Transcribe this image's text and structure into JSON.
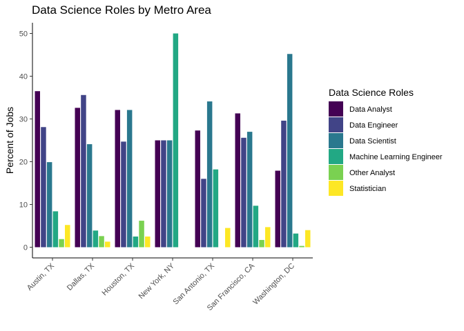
{
  "chart_data": {
    "type": "bar",
    "title": "Data Science Roles by Metro Area",
    "xlabel": "",
    "ylabel": "Percent of Jobs",
    "ylim": [
      -2.5,
      52.5
    ],
    "yticks": [
      0,
      10,
      20,
      30,
      40,
      50
    ],
    "grid": false,
    "legend": {
      "title": "Data Science Roles",
      "position": "right"
    },
    "categories": [
      "Austin, TX",
      "Dallas, TX",
      "Houston, TX",
      "New York, NY",
      "San Antonio, TX",
      "San Francisco, CA",
      "Washington, DC"
    ],
    "series": [
      {
        "name": "Data Analyst",
        "color": "#440154",
        "values": [
          36.5,
          32.6,
          32.1,
          25.0,
          27.3,
          31.3,
          17.9
        ]
      },
      {
        "name": "Data Engineer",
        "color": "#414487",
        "values": [
          28.1,
          35.6,
          24.7,
          25.0,
          16.0,
          25.6,
          29.6
        ]
      },
      {
        "name": "Data Scientist",
        "color": "#2A788E",
        "values": [
          19.9,
          24.1,
          32.1,
          25.0,
          34.1,
          27.0,
          45.2
        ]
      },
      {
        "name": "Machine Learning Engineer",
        "color": "#22A884",
        "values": [
          8.4,
          3.9,
          2.5,
          50.0,
          18.2,
          9.7,
          3.2
        ]
      },
      {
        "name": "Other Analyst",
        "color": "#7AD151",
        "values": [
          1.9,
          2.6,
          6.2,
          0,
          0,
          1.7,
          0.3
        ]
      },
      {
        "name": "Statistician",
        "color": "#FDE725",
        "values": [
          5.2,
          1.3,
          2.5,
          0,
          4.5,
          4.7,
          4.0
        ]
      }
    ]
  }
}
